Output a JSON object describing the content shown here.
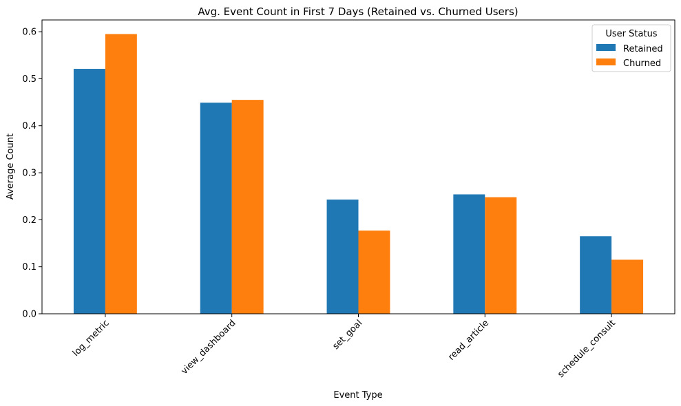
{
  "chart_data": {
    "type": "bar",
    "title": "Avg. Event Count in First 7 Days (Retained vs. Churned Users)",
    "xlabel": "Event Type",
    "ylabel": "Average Count",
    "categories": [
      "log_metric",
      "view_dashboard",
      "set_goal",
      "read_article",
      "schedule_consult"
    ],
    "series": [
      {
        "name": "Retained",
        "color": "#1f77b4",
        "values": [
          0.521,
          0.449,
          0.243,
          0.254,
          0.165
        ]
      },
      {
        "name": "Churned",
        "color": "#ff7f0e",
        "values": [
          0.595,
          0.455,
          0.177,
          0.248,
          0.115
        ]
      }
    ],
    "ylim": [
      0,
      0.625
    ],
    "yticks": [
      0.0,
      0.1,
      0.2,
      0.3,
      0.4,
      0.5,
      0.6
    ],
    "ytick_labels": [
      "0.0",
      "0.1",
      "0.2",
      "0.3",
      "0.4",
      "0.5",
      "0.6"
    ],
    "legend": {
      "title": "User Status",
      "placement": "top-right"
    },
    "grid": false
  }
}
